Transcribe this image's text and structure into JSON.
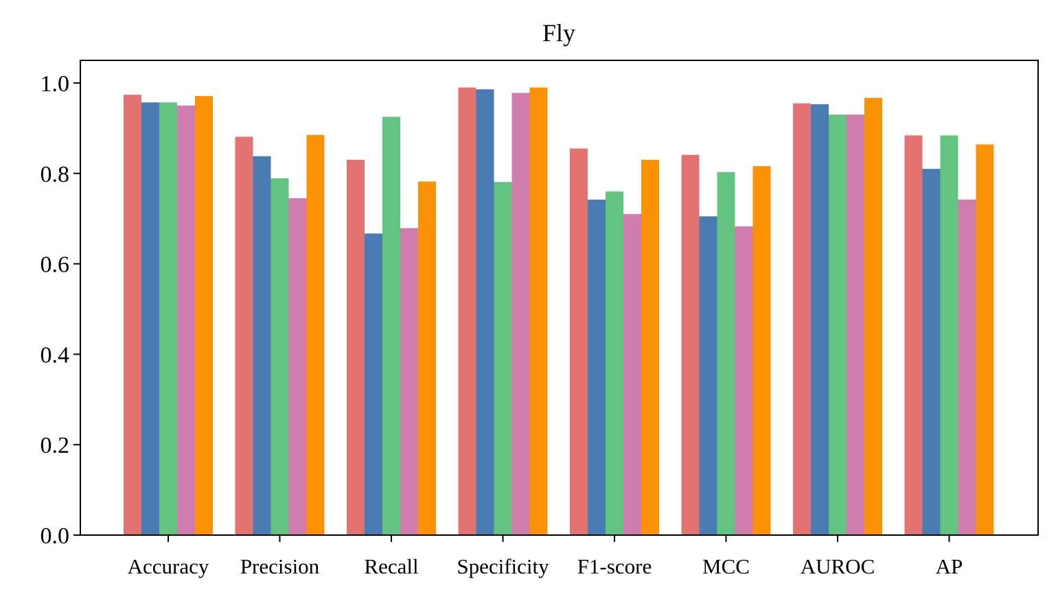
{
  "chart_data": {
    "type": "bar",
    "title": "Fly",
    "xlabel": "",
    "ylabel": "",
    "ylim": [
      0,
      1.05
    ],
    "yticks": [
      "0.0",
      "0.2",
      "0.4",
      "0.6",
      "0.8",
      "1.0"
    ],
    "categories": [
      "Accuracy",
      "Precision",
      "Recall",
      "Specificity",
      "F1-score",
      "MCC",
      "AUROC",
      "AP"
    ],
    "grid": false,
    "legend": "none",
    "series": [
      {
        "color": "#e27370",
        "values": [
          0.974,
          0.881,
          0.83,
          0.99,
          0.855,
          0.841,
          0.955,
          0.884
        ]
      },
      {
        "color": "#4a7bb2",
        "values": [
          0.957,
          0.838,
          0.667,
          0.986,
          0.742,
          0.705,
          0.953,
          0.81
        ]
      },
      {
        "color": "#62c480",
        "values": [
          0.957,
          0.789,
          0.925,
          0.781,
          0.76,
          0.803,
          0.93,
          0.884
        ]
      },
      {
        "color": "#d07cae",
        "values": [
          0.95,
          0.745,
          0.679,
          0.978,
          0.71,
          0.683,
          0.93,
          0.742
        ]
      },
      {
        "color": "#fb9104",
        "values": [
          0.971,
          0.885,
          0.782,
          0.99,
          0.83,
          0.816,
          0.967,
          0.864
        ]
      }
    ]
  }
}
